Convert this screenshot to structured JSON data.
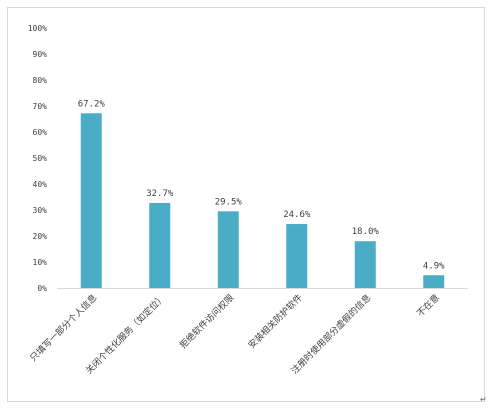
{
  "chart_data": {
    "type": "bar",
    "categories": [
      "只填写一部分个人信息",
      "关闭个性化服务（如定位）",
      "拒绝软件访问权限",
      "安装相关防护软件",
      "注册时使用部分虚假的信息",
      "不在意"
    ],
    "values": [
      67.2,
      32.7,
      29.5,
      24.6,
      18.0,
      4.9
    ],
    "value_labels": [
      "67.2%",
      "32.7%",
      "29.5%",
      "24.6%",
      "18.0%",
      "4.9%"
    ],
    "y_ticks": [
      "0%",
      "10%",
      "20%",
      "30%",
      "40%",
      "50%",
      "60%",
      "70%",
      "80%",
      "90%",
      "100%"
    ],
    "ylim": [
      0,
      100
    ],
    "grid": false,
    "legend": "none",
    "bar_color": "#4bacc6",
    "axis_color": "#d9d9d9",
    "text_color": "#404040"
  },
  "page": {
    "corner_mark": "↵"
  }
}
